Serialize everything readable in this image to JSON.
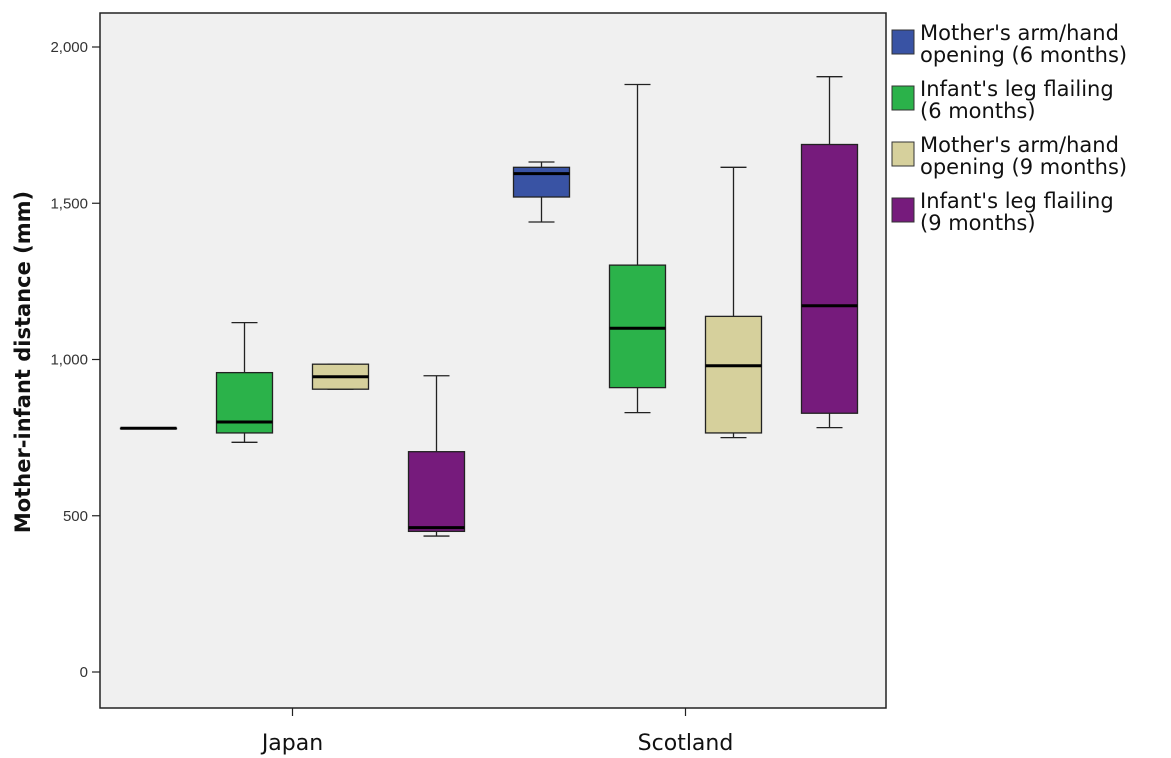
{
  "chart_data": {
    "type": "boxplot",
    "ylabel": "Mother-infant distance (mm)",
    "ylim": [
      0,
      2000
    ],
    "y_ticks": [
      {
        "value": 0,
        "label": "0"
      },
      {
        "value": 500,
        "label": "500"
      },
      {
        "value": 1000,
        "label": "1,000"
      },
      {
        "value": 1500,
        "label": "1,500"
      },
      {
        "value": 2000,
        "label": "2,000"
      }
    ],
    "categories": [
      "Japan",
      "Scotland"
    ],
    "grid": false,
    "legend_position": "right",
    "series": [
      {
        "name_lines": [
          "Mother's arm/hand",
          "opening (6 months)"
        ],
        "color": "#3953a4",
        "boxes": [
          {
            "min": 780,
            "q1": 780,
            "median": 780,
            "q3": 780,
            "max": 780
          },
          {
            "min": 1440,
            "q1": 1520,
            "median": 1595,
            "q3": 1615,
            "max": 1632
          }
        ]
      },
      {
        "name_lines": [
          "Infant's leg flailing",
          "(6 months)"
        ],
        "color": "#2bb24a",
        "boxes": [
          {
            "min": 735,
            "q1": 765,
            "median": 800,
            "q3": 958,
            "max": 1118
          },
          {
            "min": 830,
            "q1": 910,
            "median": 1100,
            "q3": 1302,
            "max": 1880
          }
        ]
      },
      {
        "name_lines": [
          "Mother's arm/hand",
          "opening (9 months)"
        ],
        "color": "#d6d09c",
        "boxes": [
          {
            "min": 905,
            "q1": 905,
            "median": 945,
            "q3": 985,
            "max": 985
          },
          {
            "min": 750,
            "q1": 765,
            "median": 980,
            "q3": 1138,
            "max": 1615
          }
        ]
      },
      {
        "name_lines": [
          "Infant's leg flailing",
          "(9 months)"
        ],
        "color": "#761b7c",
        "boxes": [
          {
            "min": 435,
            "q1": 450,
            "median": 462,
            "q3": 705,
            "max": 948
          },
          {
            "min": 782,
            "q1": 828,
            "median": 1172,
            "q3": 1688,
            "max": 1905
          }
        ]
      }
    ]
  }
}
